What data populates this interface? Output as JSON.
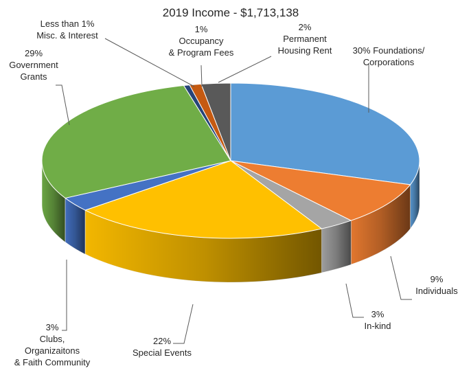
{
  "chart_data": {
    "type": "pie",
    "title": "2019 Income - $1,713,138",
    "slices": [
      {
        "label": "30% Foundations/ Corporations",
        "lines": [
          "30% Foundations/",
          "Corporations"
        ],
        "value": 30,
        "color": "#5b9bd5"
      },
      {
        "label": "9% Individuals",
        "lines": [
          "9%",
          "Individuals"
        ],
        "value": 9,
        "color": "#ed7d31"
      },
      {
        "label": "3% In-kind",
        "lines": [
          "3%",
          "In-kind"
        ],
        "value": 3,
        "color": "#a5a5a5"
      },
      {
        "label": "22% Special Events",
        "lines": [
          "22%",
          "Special Events"
        ],
        "value": 22,
        "color": "#ffc000"
      },
      {
        "label": "3% Clubs, Organizaitons & Faith Community",
        "lines": [
          "3%",
          "Clubs,",
          "Organizaitons",
          "& Faith Community"
        ],
        "value": 3,
        "color": "#4472c4"
      },
      {
        "label": "29% Government Grants",
        "lines": [
          "29%",
          "Government",
          "Grants"
        ],
        "value": 29,
        "color": "#70ad47"
      },
      {
        "label": "Less than 1% Misc. & Interest",
        "lines": [
          "Less than 1%",
          "Misc. & Interest"
        ],
        "value": 0.5,
        "color": "#264478"
      },
      {
        "label": "1% Occupancy & Program Fees",
        "lines": [
          "1%",
          "Occupancy",
          "& Program Fees"
        ],
        "value": 1,
        "color": "#c55a11"
      },
      {
        "label": "2% Permanent Housing Rent",
        "lines": [
          "2%",
          "Permanent",
          "Housing Rent"
        ],
        "value": 2.5,
        "color": "#595959"
      }
    ]
  }
}
